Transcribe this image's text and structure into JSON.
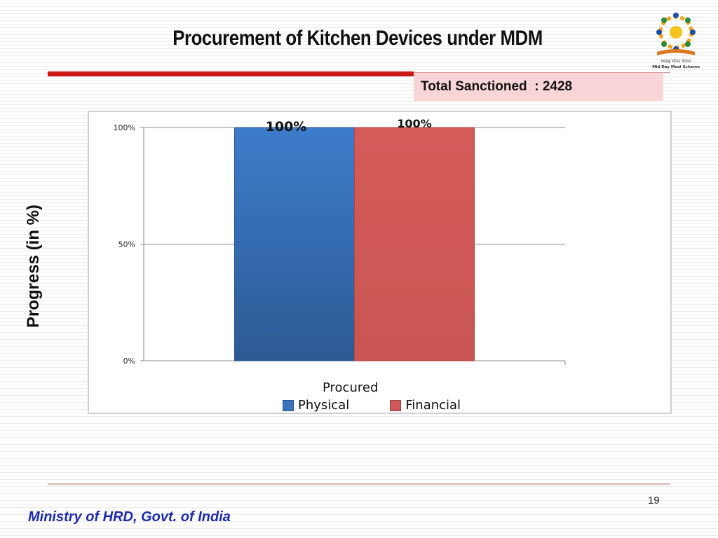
{
  "slide": {
    "title": "Procurement of Kitchen Devices under MDM",
    "total_sanctioned": "Total Sanctioned  : 2428",
    "page_number": "19",
    "footer": "Ministry of HRD, Govt. of India",
    "logo_text_1": "मध्याह्न भोजन योजना",
    "logo_text_2": "Mid Day Meal Scheme"
  },
  "colors": {
    "physical": "#3a73b9",
    "financial": "#cf5a57",
    "accent_red": "#cc1717",
    "footer_blue": "#1d2bb0"
  },
  "chart_data": {
    "type": "bar",
    "categories": [
      "Procured"
    ],
    "series": [
      {
        "name": "Physical",
        "values": [
          100
        ],
        "label": "100%"
      },
      {
        "name": "Financial",
        "values": [
          100
        ],
        "label": "100%"
      }
    ],
    "ylabel": "Progress (in %)",
    "xlabel": "Procured",
    "ylim": [
      0,
      100
    ],
    "yticks": [
      "0%",
      "50%",
      "100%"
    ],
    "ytick_values": [
      0,
      50,
      100
    ],
    "grid": true,
    "legend": "bottom"
  }
}
